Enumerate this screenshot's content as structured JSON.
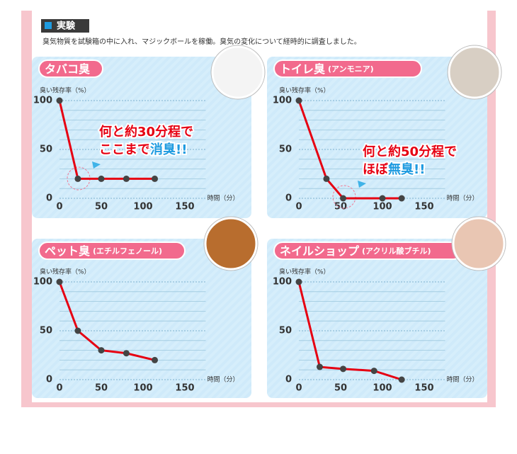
{
  "header": {
    "title": "実験",
    "description": "臭気物質を試験箱の中に入れ、マジックボールを稼働。臭気の変化について経時的に調査しました。"
  },
  "chart_data": [
    {
      "type": "line",
      "title": "タバコ臭",
      "y_label": "臭い残存率（%）",
      "x_label": "時間（分）",
      "x": [
        0,
        22,
        50,
        80,
        114
      ],
      "values": [
        100,
        20,
        20,
        20,
        20
      ],
      "color": "#e60012",
      "xlim": [
        0,
        175
      ],
      "ylim": [
        0,
        100
      ],
      "xticks": [
        0,
        50,
        100,
        150
      ],
      "yticks": [
        0,
        50,
        100
      ],
      "minor_yticks": [
        10,
        20,
        30,
        40,
        60,
        70,
        80,
        90
      ],
      "annotation": [
        [
          "何と約30分程で"
        ],
        [
          "ここまで",
          "消臭!!"
        ]
      ]
    },
    {
      "type": "line",
      "title": "トイレ臭",
      "subtitle": "(アンモニア)",
      "y_label": "臭い残存率（%）",
      "x_label": "時間（分）",
      "x": [
        0,
        33,
        53,
        100,
        123
      ],
      "values": [
        100,
        20,
        0,
        0,
        0
      ],
      "color": "#e60012",
      "xlim": [
        0,
        175
      ],
      "ylim": [
        0,
        100
      ],
      "xticks": [
        0,
        50,
        100,
        150
      ],
      "yticks": [
        0,
        50,
        100
      ],
      "minor_yticks": [
        10,
        20,
        30,
        40,
        60,
        70,
        80,
        90
      ],
      "annotation": [
        [
          "何と約50分程で"
        ],
        [
          "ほぼ",
          "無臭!!"
        ]
      ]
    },
    {
      "type": "line",
      "title": "ペット臭",
      "subtitle": "(エチルフェノール)",
      "y_label": "臭い残存率（%）",
      "x_label": "時間（分）",
      "x": [
        0,
        22,
        50,
        80,
        114
      ],
      "values": [
        100,
        50,
        30,
        27,
        20
      ],
      "color": "#e60012",
      "xlim": [
        0,
        175
      ],
      "ylim": [
        0,
        100
      ],
      "xticks": [
        0,
        50,
        100,
        150
      ],
      "yticks": [
        0,
        50,
        100
      ],
      "minor_yticks": [
        10,
        20,
        30,
        40,
        60,
        70,
        80,
        90
      ]
    },
    {
      "type": "line",
      "title": "ネイルショップ",
      "subtitle": "(アクリル酸ブチル)",
      "y_label": "臭い残存率（%）",
      "x_label": "時間（分）",
      "x": [
        0,
        25,
        53,
        90,
        123
      ],
      "values": [
        100,
        13,
        11,
        9,
        0
      ],
      "color": "#e60012",
      "xlim": [
        0,
        175
      ],
      "ylim": [
        0,
        100
      ],
      "xticks": [
        0,
        50,
        100,
        150
      ],
      "yticks": [
        0,
        50,
        100
      ],
      "minor_yticks": [
        10,
        20,
        30,
        40,
        60,
        70,
        80,
        90
      ]
    }
  ]
}
